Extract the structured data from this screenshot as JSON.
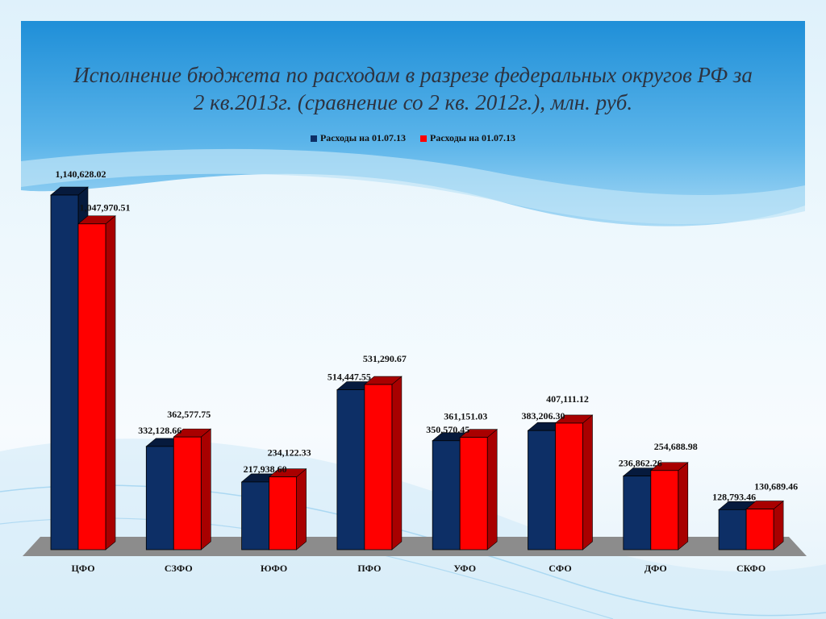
{
  "title_line1": "Исполнение бюджета по расходам в разрезе федеральных округов РФ за",
  "title_line2": "2 кв.2013г. (сравнение со 2 кв. 2012г.), млн. руб.",
  "colors": {
    "series1": "#0d2f66",
    "series1_side": "#061a3d",
    "series2": "#ff0000",
    "series2_side": "#a80000",
    "floor": "#8c8c8c"
  },
  "chart_data": {
    "type": "bar",
    "title": "Исполнение бюджета по расходам в разрезе федеральных округов РФ за 2 кв.2013г. (сравнение со 2 кв. 2012г.), млн. руб.",
    "xlabel": "",
    "ylabel": "",
    "ylim": [
      0,
      1200000
    ],
    "grid": false,
    "legend": "top-center",
    "categories": [
      "ЦФО",
      "СЗФО",
      "ЮФО",
      "ПФО",
      "УФО",
      "СФО",
      "ДФО",
      "СКФО"
    ],
    "series": [
      {
        "name": "Расходы на 01.07.13",
        "values": [
          1140628.02,
          332128.66,
          217938.6,
          514447.55,
          350570.45,
          383206.3,
          236862.26,
          128793.46
        ],
        "labels": [
          "1,140,628.02",
          "332,128.66",
          "217,938.60",
          "514,447.55",
          "350,570.45",
          "383,206.30",
          "236,862.26",
          "128,793.46"
        ]
      },
      {
        "name": "Расходы на 01.07.13",
        "values": [
          1047970.51,
          362577.75,
          234122.33,
          531290.67,
          361151.03,
          407111.12,
          254688.98,
          130689.46
        ],
        "labels": [
          "1,047,970.51",
          "362,577.75",
          "234,122.33",
          "531,290.67",
          "361,151.03",
          "407,111.12",
          "254,688.98",
          "130,689.46"
        ]
      }
    ]
  }
}
